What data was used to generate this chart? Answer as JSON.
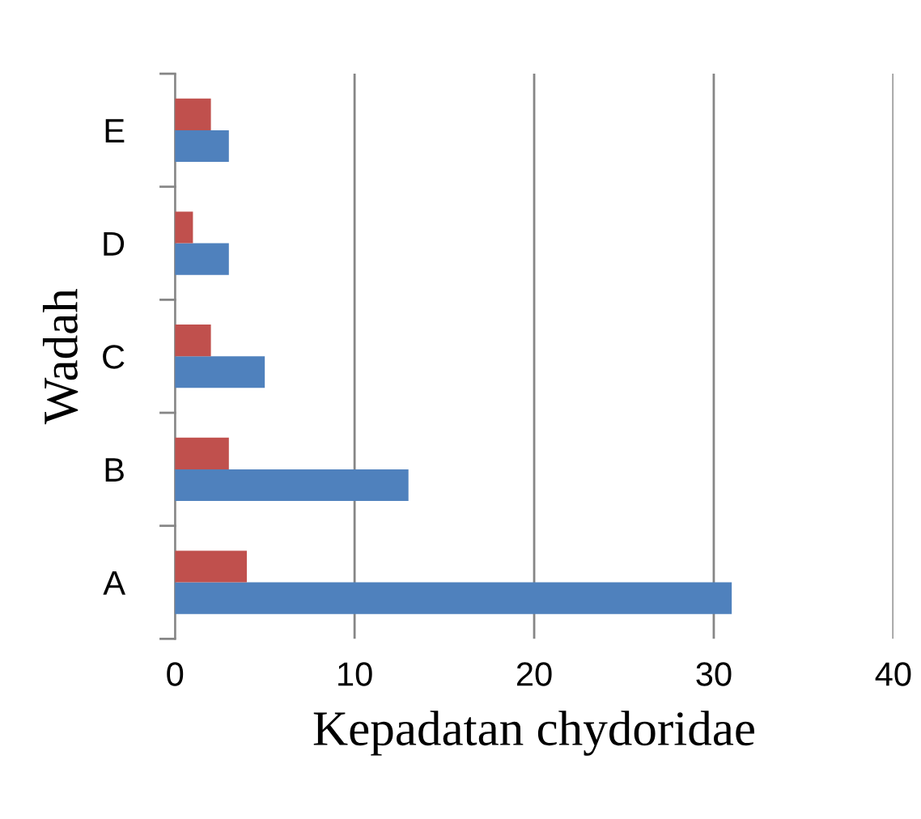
{
  "chart_data": {
    "type": "bar",
    "orientation": "horizontal",
    "xlabel": "Kepadatan chydoridae",
    "ylabel": "Wadah",
    "categories": [
      "E",
      "D",
      "C",
      "B",
      "A"
    ],
    "series": [
      {
        "color": "#4f81bd",
        "values": [
          3,
          3,
          5,
          13,
          31
        ]
      },
      {
        "color": "#c0504d",
        "values": [
          2,
          1,
          2,
          3,
          4
        ]
      }
    ],
    "xlim": [
      0,
      40
    ],
    "xticks": [
      0,
      10,
      20,
      30,
      40
    ],
    "grid": "x",
    "legend": false
  }
}
